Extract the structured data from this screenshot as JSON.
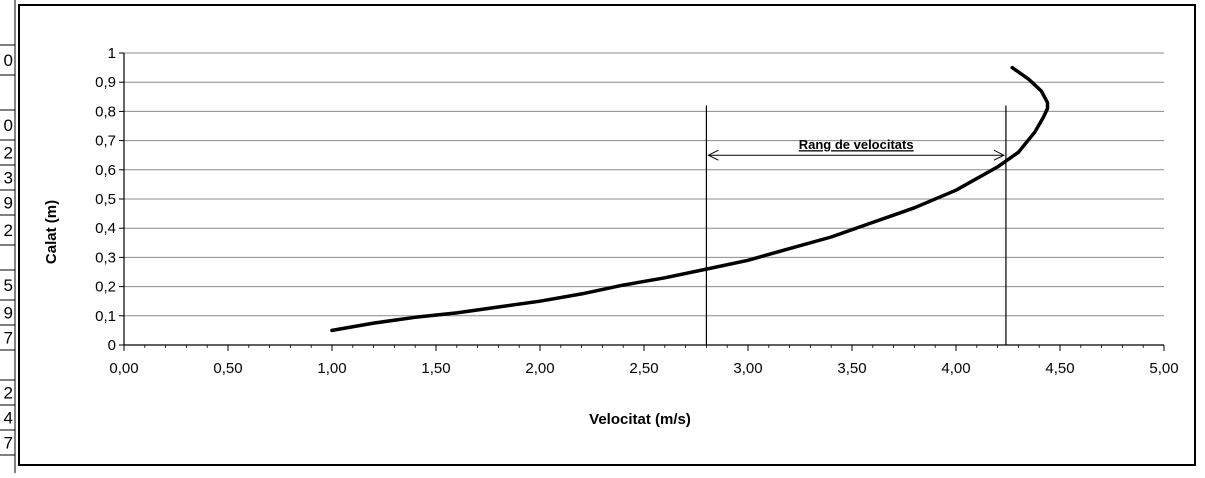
{
  "left_cells": [
    "0",
    "0",
    "2",
    "3",
    "9",
    "2",
    "5",
    "9",
    "7",
    "2",
    "4",
    "7"
  ],
  "chart_data": {
    "type": "line",
    "title": "",
    "xlabel": "Velocitat (m/s)",
    "ylabel": "Calat (m)",
    "xlim": [
      0,
      5
    ],
    "ylim": [
      0,
      1
    ],
    "x_ticks": [
      "0,00",
      "0,50",
      "1,00",
      "1,50",
      "2,00",
      "2,50",
      "3,00",
      "3,50",
      "4,00",
      "4,50",
      "5,00"
    ],
    "y_ticks": [
      "0",
      "0,1",
      "0,2",
      "0,3",
      "0,4",
      "0,5",
      "0,6",
      "0,7",
      "0,8",
      "0,9",
      "1"
    ],
    "grid": "horizontal",
    "series": [
      {
        "name": "",
        "x": [
          1.0,
          1.2,
          1.4,
          1.6,
          1.8,
          2.0,
          2.2,
          2.4,
          2.6,
          2.8,
          3.0,
          3.2,
          3.4,
          3.6,
          3.8,
          4.0,
          4.2,
          4.3,
          4.38,
          4.42,
          4.44,
          4.44,
          4.41,
          4.35,
          4.27
        ],
        "y": [
          0.05,
          0.075,
          0.095,
          0.11,
          0.13,
          0.15,
          0.175,
          0.205,
          0.23,
          0.26,
          0.29,
          0.33,
          0.37,
          0.42,
          0.47,
          0.53,
          0.61,
          0.66,
          0.73,
          0.78,
          0.81,
          0.83,
          0.87,
          0.91,
          0.95
        ]
      }
    ],
    "annotation": {
      "label": "Rang de velocitats",
      "x_start": 2.8,
      "x_end": 4.24,
      "y": 0.65,
      "line_top": 0.82
    }
  }
}
